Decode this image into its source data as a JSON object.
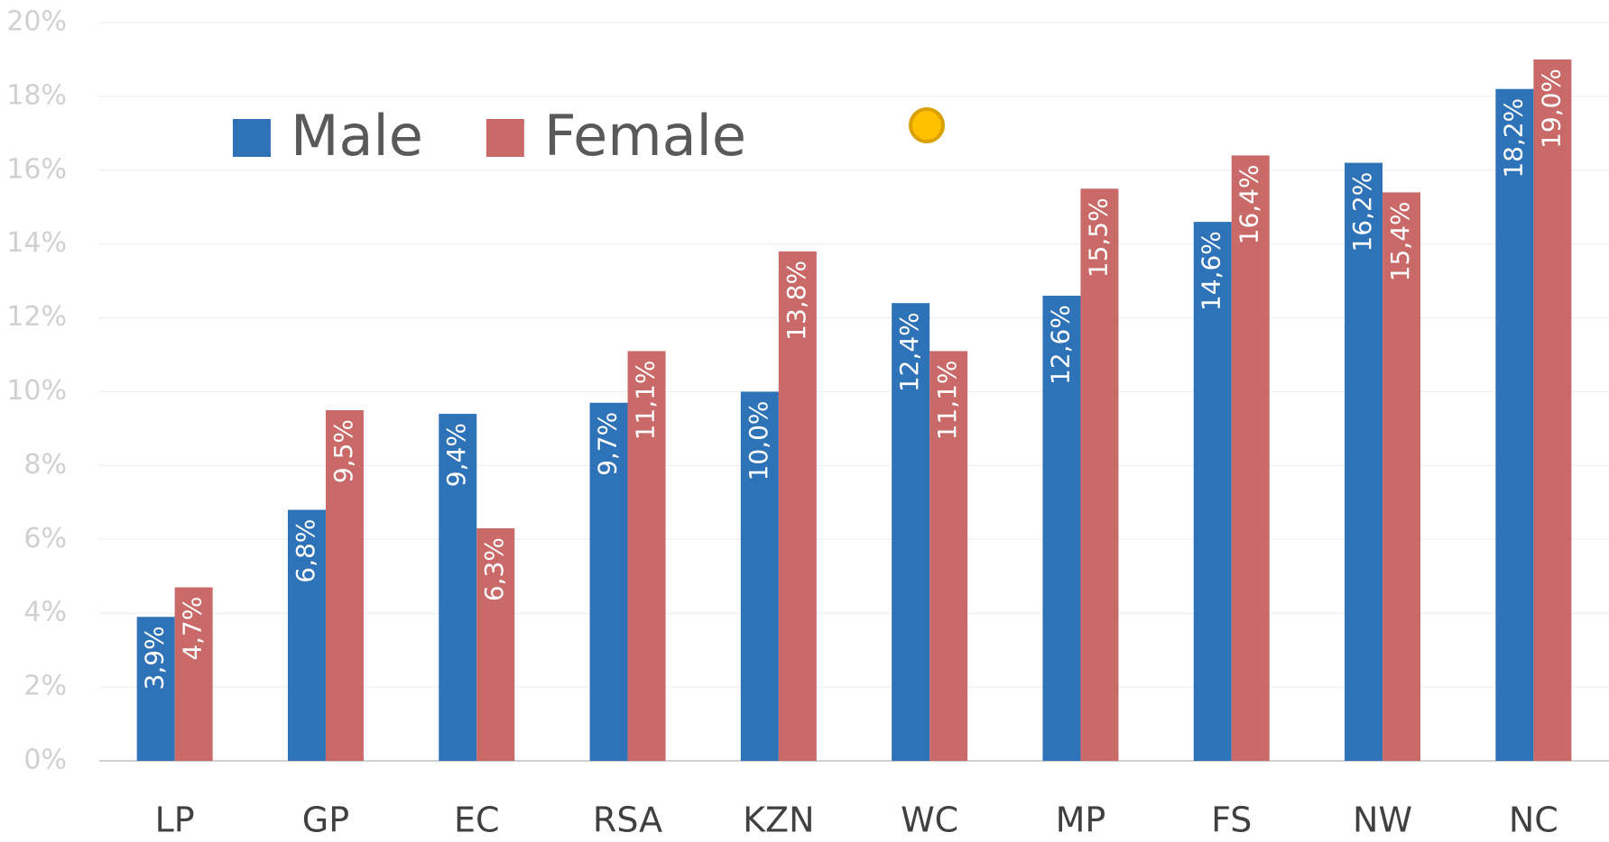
{
  "chart_data": {
    "type": "bar",
    "categories": [
      "LP",
      "GP",
      "EC",
      "RSA",
      "KZN",
      "WC",
      "MP",
      "FS",
      "NW",
      "NC"
    ],
    "series": [
      {
        "name": "Male",
        "color": "#2e72b8",
        "values": [
          3.9,
          6.8,
          9.4,
          9.7,
          10.0,
          12.4,
          12.6,
          14.6,
          16.2,
          18.2
        ],
        "value_labels": [
          "3,9%",
          "6,8%",
          "9,4%",
          "9,7%",
          "10,0%",
          "12,4%",
          "12,6%",
          "14,6%",
          "16,2%",
          "18,2%"
        ]
      },
      {
        "name": "Female",
        "color": "#c96a69",
        "values": [
          4.7,
          9.5,
          6.3,
          11.1,
          13.8,
          11.1,
          15.5,
          16.4,
          15.4,
          19.0
        ],
        "value_labels": [
          "4,7%",
          "9,5%",
          "6,3%",
          "11,1%",
          "13,8%",
          "11,1%",
          "15,5%",
          "16,4%",
          "15,4%",
          "19,0%"
        ]
      }
    ],
    "ylim": [
      0,
      20
    ],
    "yticks": [
      {
        "value": 0,
        "label": "0%"
      },
      {
        "value": 2,
        "label": "2%"
      },
      {
        "value": 4,
        "label": "4%"
      },
      {
        "value": 6,
        "label": "6%"
      },
      {
        "value": 8,
        "label": "8%"
      },
      {
        "value": 10,
        "label": "10%"
      },
      {
        "value": 12,
        "label": "12%"
      },
      {
        "value": 14,
        "label": "14%"
      },
      {
        "value": 16,
        "label": "16%"
      },
      {
        "value": 18,
        "label": "18%"
      },
      {
        "value": 20,
        "label": "20%"
      }
    ],
    "grid": true,
    "legend": "upper left"
  }
}
